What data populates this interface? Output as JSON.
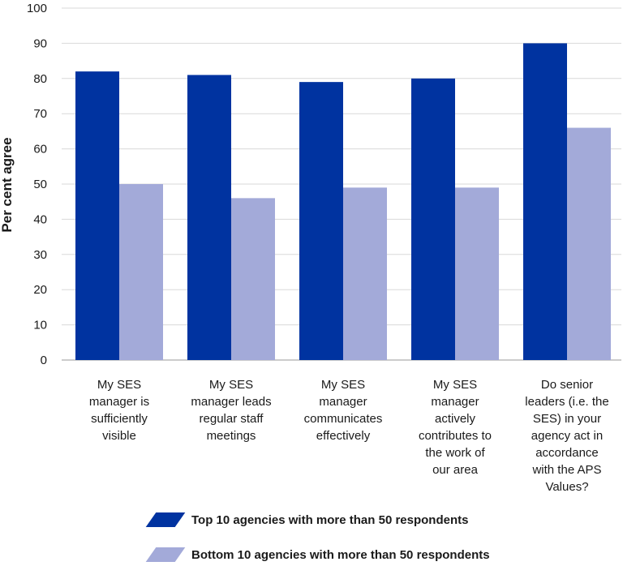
{
  "chart_data": {
    "type": "bar",
    "ylabel": "Per cent agree",
    "ylim": [
      0,
      100
    ],
    "yticks": [
      0,
      10,
      20,
      30,
      40,
      50,
      60,
      70,
      80,
      90,
      100
    ],
    "grid": true,
    "legend_position": "bottom",
    "categories": [
      "My SES manager is sufficiently visible",
      "My SES manager leads regular staff meetings",
      "My SES manager communicates effectively",
      "My SES manager actively contributes to the work of our area",
      "Do senior leaders (i.e. the SES) in your agency act in accordance with the APS Values?"
    ],
    "series": [
      {
        "name": "Top 10 agencies with more than 50 respondents",
        "color": "#0033a0",
        "values": [
          82,
          81,
          79,
          80,
          90
        ]
      },
      {
        "name": "Bottom 10 agencies with more than 50 respondents",
        "color": "#a3aad9",
        "values": [
          50,
          46,
          49,
          49,
          66
        ]
      }
    ]
  }
}
